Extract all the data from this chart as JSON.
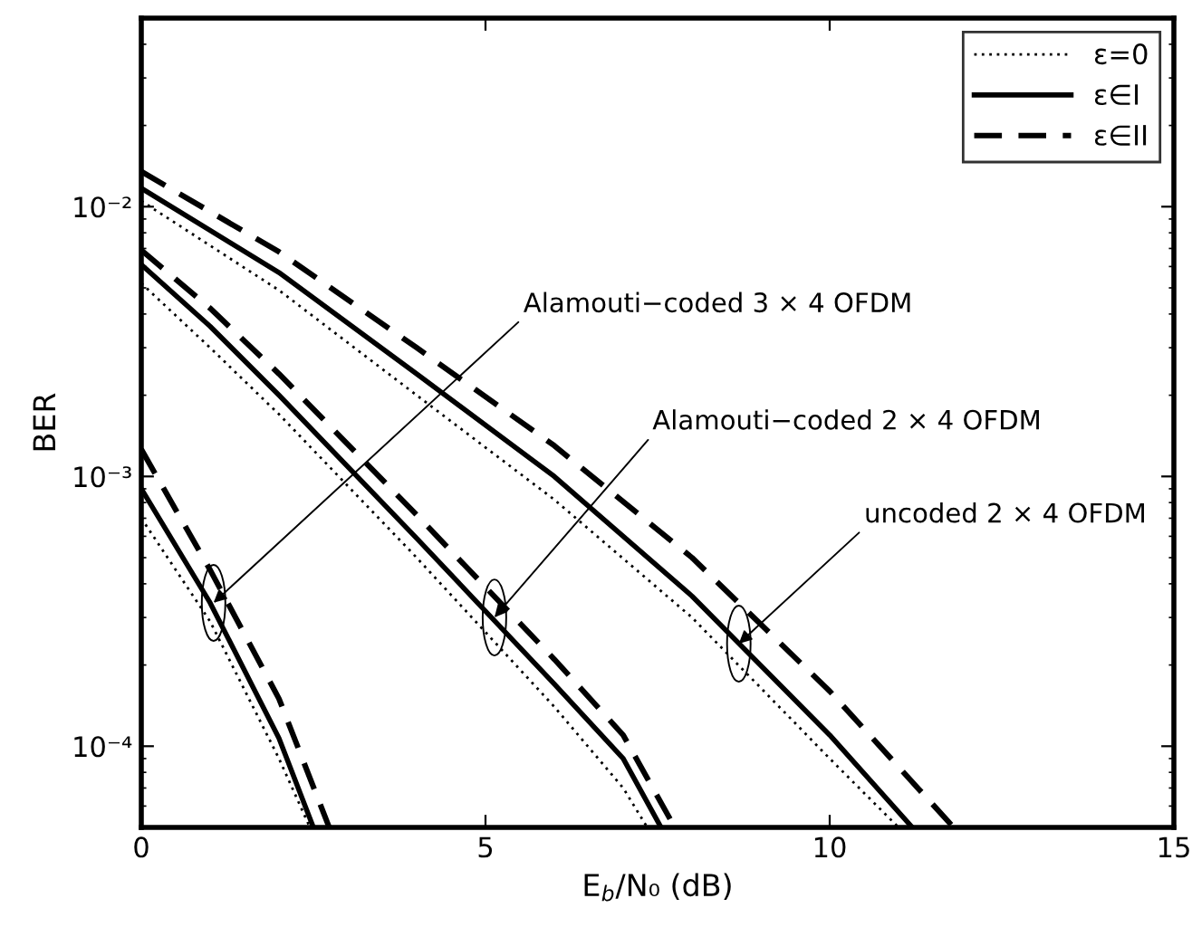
{
  "chart_data": {
    "type": "line",
    "xlabel": "E$_{b}$/N₀ (dB)",
    "ylabel": "BER",
    "log": "y",
    "xlim": [
      0,
      15
    ],
    "xticks": [
      0,
      5,
      10,
      15
    ],
    "ylim": [
      5e-05,
      0.05
    ],
    "yticks": [
      {
        "value": 0.0001,
        "label": "10⁻⁴"
      },
      {
        "value": 0.001,
        "label": "10⁻³"
      },
      {
        "value": 0.01,
        "label": "10⁻²"
      }
    ],
    "grid": false,
    "legend": "top right",
    "marker": "none",
    "series": [
      {
        "name": "ε=0",
        "color": "#000000",
        "line_style": "dotted",
        "x": [
          0,
          2,
          4,
          6,
          8,
          10,
          11.0
        ],
        "values": [
          0.0105,
          0.0049,
          0.002,
          0.00082,
          0.0003,
          9e-05,
          5e-05
        ]
      },
      {
        "name": "ε∈I",
        "color": "#000000",
        "line_style": "solid",
        "x": [
          0,
          2,
          4,
          6,
          8,
          10,
          11.2
        ],
        "values": [
          0.0117,
          0.0057,
          0.0024,
          0.001,
          0.00036,
          0.00011,
          5e-05
        ]
      },
      {
        "name": "ε∈II",
        "color": "#000000",
        "line_style": "dashed",
        "x": [
          0,
          2,
          4,
          6,
          8,
          10,
          11.8
        ],
        "values": [
          0.0135,
          0.0068,
          0.003,
          0.0013,
          0.0005,
          0.00016,
          5e-05
        ]
      },
      {
        "color": "#000000",
        "line_style": "dotted",
        "x": [
          0,
          1,
          2,
          4,
          6,
          7,
          7.35
        ],
        "values": [
          0.0052,
          0.003,
          0.0017,
          0.0005,
          0.00014,
          7e-05,
          5e-05
        ]
      },
      {
        "color": "#000000",
        "line_style": "solid",
        "x": [
          0,
          1,
          2,
          4,
          6,
          7,
          7.55
        ],
        "values": [
          0.0061,
          0.0036,
          0.002,
          0.00059,
          0.00017,
          9e-05,
          5e-05
        ]
      },
      {
        "color": "#000000",
        "line_style": "dashed",
        "x": [
          0,
          1,
          2,
          4,
          6,
          7,
          7.75
        ],
        "values": [
          0.0069,
          0.0042,
          0.0024,
          0.00072,
          0.00021,
          0.00011,
          5e-05
        ]
      },
      {
        "color": "#000000",
        "line_style": "dotted",
        "x": [
          0,
          1,
          2,
          2.45
        ],
        "values": [
          0.0007,
          0.00029,
          9e-05,
          5e-05
        ]
      },
      {
        "color": "#000000",
        "line_style": "solid",
        "x": [
          0,
          1,
          2,
          2.5
        ],
        "values": [
          0.0009,
          0.00034,
          0.000107,
          5e-05
        ]
      },
      {
        "color": "#000000",
        "line_style": "dashed",
        "x": [
          0,
          1,
          2,
          2.73
        ],
        "values": [
          0.00126,
          0.00045,
          0.00015,
          5e-05
        ]
      }
    ],
    "annotations": [
      {
        "text": "Alamouti−coded 3 × 4 OFDM",
        "x": 1.05,
        "y": 0.00034
      },
      {
        "text": "Alamouti−coded 2 × 4 OFDM",
        "x": 5.13,
        "y": 0.0003
      },
      {
        "text": "uncoded 2 × 4 OFDM",
        "x": 8.68,
        "y": 0.00024
      }
    ]
  }
}
